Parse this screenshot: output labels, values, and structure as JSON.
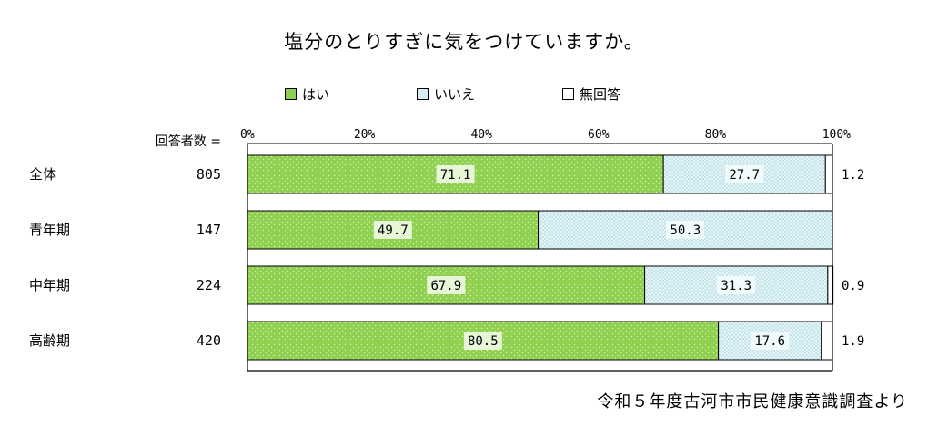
{
  "chart_data": {
    "type": "bar",
    "orientation": "horizontal",
    "stacked": true,
    "title": "塩分のとりすぎに気をつけていますか。",
    "n_header": "回答者数 =",
    "categories": [
      "全体",
      "青年期",
      "中年期",
      "高齢期"
    ],
    "counts": [
      "805",
      "147",
      "224",
      "420"
    ],
    "series": [
      {
        "name": "はい",
        "color": "#8fd050",
        "values": [
          71.1,
          49.7,
          67.9,
          80.5
        ]
      },
      {
        "name": "いいえ",
        "color": "#d6eef2",
        "values": [
          27.7,
          50.3,
          31.3,
          17.6
        ]
      },
      {
        "name": "無回答",
        "color": "#ffffff",
        "values": [
          1.2,
          null,
          0.9,
          1.9
        ]
      }
    ],
    "value_labels": [
      [
        "71.1",
        "27.7",
        "1.2"
      ],
      [
        "49.7",
        "50.3",
        ""
      ],
      [
        "67.9",
        "31.3",
        "0.9"
      ],
      [
        "80.5",
        "17.6",
        "1.9"
      ]
    ],
    "xticks": [
      "0%",
      "20%",
      "40%",
      "60%",
      "80%",
      "100%"
    ],
    "xlim": [
      0,
      100
    ],
    "legend_position": "top"
  },
  "source": "令和５年度古河市市民健康意識調査より"
}
